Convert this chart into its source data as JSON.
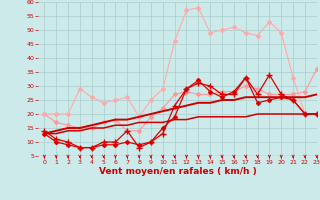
{
  "xlabel": "Vent moyen/en rafales ( km/h )",
  "background_color": "#cceaea",
  "grid_color": "#aacccc",
  "x": [
    0,
    1,
    2,
    3,
    4,
    5,
    6,
    7,
    8,
    9,
    10,
    11,
    12,
    13,
    14,
    15,
    16,
    17,
    18,
    19,
    20,
    21,
    22,
    23
  ],
  "series": [
    {
      "y": [
        20,
        17,
        16,
        15,
        15,
        17,
        18,
        14,
        14,
        19,
        22,
        27,
        28,
        27,
        27,
        28,
        28,
        30,
        29,
        27,
        27,
        27,
        28,
        36
      ],
      "color": "#ff9999",
      "linewidth": 0.8,
      "marker": "D",
      "markersize": 2.0,
      "zorder": 3
    },
    {
      "y": [
        20,
        20,
        20,
        29,
        26,
        24,
        25,
        26,
        19,
        25,
        29,
        46,
        57,
        58,
        49,
        50,
        51,
        49,
        48,
        53,
        49,
        33,
        20,
        20
      ],
      "color": "#ffaaaa",
      "linewidth": 0.8,
      "marker": "D",
      "markersize": 2.0,
      "zorder": 3
    },
    {
      "y": [
        14,
        11,
        10,
        8,
        8,
        10,
        10,
        14,
        8,
        10,
        13,
        23,
        29,
        31,
        30,
        27,
        27,
        33,
        27,
        34,
        27,
        25,
        20,
        20
      ],
      "color": "#dd0000",
      "linewidth": 0.9,
      "marker": "+",
      "markersize": 4,
      "zorder": 4
    },
    {
      "y": [
        13,
        10,
        9,
        8,
        8,
        9,
        9,
        10,
        9,
        10,
        15,
        19,
        29,
        32,
        28,
        26,
        28,
        33,
        24,
        25,
        26,
        25,
        20,
        20
      ],
      "color": "#dd0000",
      "linewidth": 0.9,
      "marker": "D",
      "markersize": 2.0,
      "zorder": 4
    },
    {
      "y": [
        13,
        14,
        15,
        15,
        16,
        17,
        18,
        18,
        19,
        20,
        21,
        22,
        23,
        24,
        24,
        25,
        25,
        26,
        26,
        26,
        26,
        26,
        26,
        27
      ],
      "color": "#cc0000",
      "linewidth": 1.4,
      "marker": null,
      "markersize": 0,
      "zorder": 5
    },
    {
      "y": [
        13,
        13,
        14,
        14,
        15,
        15,
        16,
        16,
        17,
        17,
        17,
        18,
        18,
        19,
        19,
        19,
        19,
        19,
        20,
        20,
        20,
        20,
        20,
        20
      ],
      "color": "#cc0000",
      "linewidth": 1.1,
      "marker": null,
      "markersize": 0,
      "zorder": 5
    }
  ],
  "ylim": [
    5,
    60
  ],
  "xlim": [
    -0.5,
    23
  ],
  "yticks": [
    5,
    10,
    15,
    20,
    25,
    30,
    35,
    40,
    45,
    50,
    55,
    60
  ],
  "xticks": [
    0,
    1,
    2,
    3,
    4,
    5,
    6,
    7,
    8,
    9,
    10,
    11,
    12,
    13,
    14,
    15,
    16,
    17,
    18,
    19,
    20,
    21,
    22,
    23
  ],
  "arrow_color": "#cc0000",
  "xlabel_color": "#cc0000",
  "tick_color": "#cc0000",
  "tick_fontsize": 4.5,
  "xlabel_fontsize": 6.5,
  "bottom_line_color": "#cc0000"
}
